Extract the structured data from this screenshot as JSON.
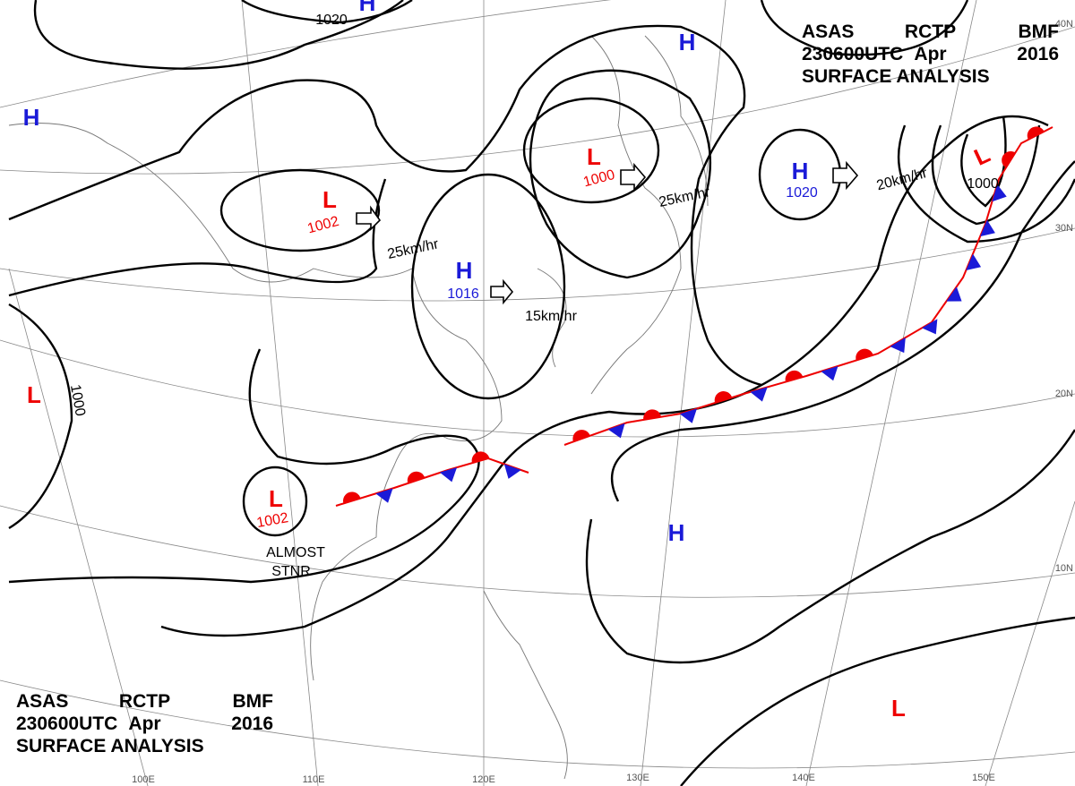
{
  "header_top": {
    "lines": [
      [
        "ASAS",
        "RCTP",
        "BMF"
      ],
      [
        "230600UTC",
        "Apr",
        "2016"
      ],
      [
        "SURFACE ANALYSIS"
      ]
    ]
  },
  "header_bottom": {
    "lines": [
      [
        "ASAS",
        "RCTP",
        "BMF"
      ],
      [
        "230600UTC",
        "Apr",
        "2016"
      ],
      [
        "SURFACE ANALYSIS"
      ]
    ]
  },
  "pressure_systems": [
    {
      "kind": "L",
      "value": "1002"
    },
    {
      "kind": "H",
      "value": "1016"
    },
    {
      "kind": "L",
      "value": "1000"
    },
    {
      "kind": "H",
      "value": "1020"
    },
    {
      "kind": "L",
      "value": "1002"
    },
    {
      "kind": "L"
    },
    {
      "kind": "H"
    },
    {
      "kind": "H"
    },
    {
      "kind": "L"
    },
    {
      "kind": "H"
    },
    {
      "kind": "L"
    },
    {
      "kind": "H"
    }
  ],
  "movements": [
    "25km/hr",
    "15km/hr",
    "25km/hr",
    "20km/hr"
  ],
  "isobar_labels": [
    "1020",
    "1000",
    "1000"
  ],
  "annotation": [
    "ALMOST",
    "STNR"
  ],
  "latitudes": [
    "40N",
    "30N",
    "20N",
    "10N"
  ],
  "longitudes": [
    "100E",
    "110E",
    "120E",
    "130E",
    "140E",
    "150E"
  ]
}
